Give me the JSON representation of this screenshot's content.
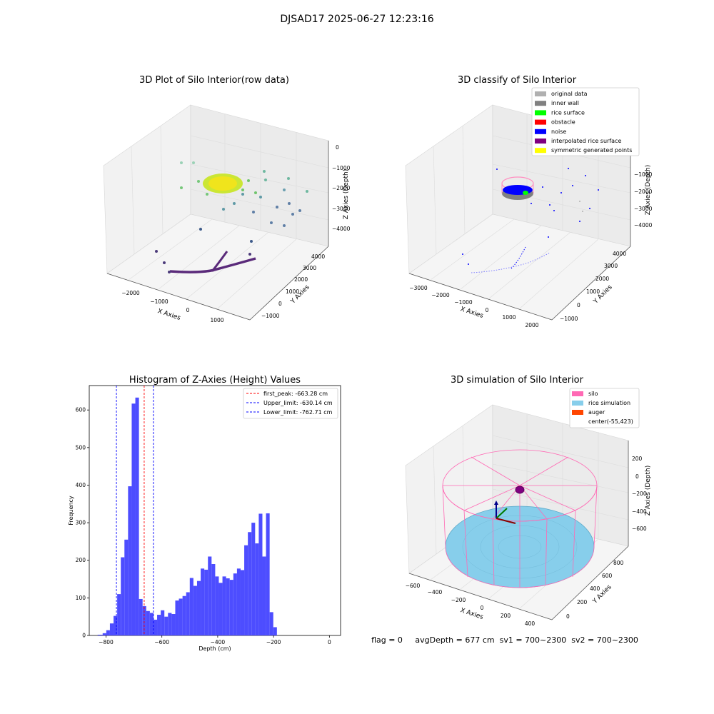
{
  "suptitle": "DJSAD17 2025-06-27 12:23:16",
  "panels": {
    "raw": {
      "title": "3D Plot of Silo Interior(row data)",
      "xlabel": "X Axies",
      "ylabel": "Y Axies",
      "zlabel": "Z Axies (Depth)",
      "xticks": [
        "−2000",
        "−1000",
        "0",
        "1000"
      ],
      "yticks": [
        "−1000",
        "0",
        "1000",
        "2000",
        "3000",
        "4000"
      ],
      "zticks": [
        "0",
        "−1000",
        "−2000",
        "−3000",
        "−4000"
      ]
    },
    "classify": {
      "title": "3D classify of Silo Interior",
      "xlabel": "X Axies",
      "ylabel": "Y Axies",
      "zlabel": "Z Axies (Depth)",
      "xticks": [
        "−3000",
        "−2000",
        "−1000",
        "0",
        "1000",
        "2000"
      ],
      "yticks": [
        "−1000",
        "0",
        "1000",
        "2000",
        "3000",
        "4000"
      ],
      "zticks": [
        "−1000",
        "−2000",
        "−3000",
        "−4000"
      ],
      "legend": [
        {
          "label": "original data",
          "color": "#b0b0b0"
        },
        {
          "label": "inner wall",
          "color": "#808080"
        },
        {
          "label": "rice surface",
          "color": "#00ff00"
        },
        {
          "label": "obstacle",
          "color": "#ff0000"
        },
        {
          "label": "noise",
          "color": "#0000ff"
        },
        {
          "label": "interpolated rice surface",
          "color": "#800080"
        },
        {
          "label": "symmetric generated points",
          "color": "#ffff00"
        }
      ]
    },
    "simulation": {
      "title": "3D simulation of Silo Interior",
      "xlabel": "X Axies",
      "ylabel": "Y Axies",
      "zlabel": "Z Axies (Depth)",
      "xticks": [
        "−600",
        "−400",
        "−200",
        "0",
        "200",
        "400"
      ],
      "yticks": [
        "0",
        "200",
        "400",
        "600",
        "800"
      ],
      "zticks": [
        "200",
        "0",
        "−200",
        "−400",
        "−600"
      ],
      "legend": [
        {
          "label": "silo",
          "color": "#ff69b4"
        },
        {
          "label": "rice simulation",
          "color": "#87ceeb"
        },
        {
          "label": "auger",
          "color": "#ff4500"
        },
        {
          "label": "center(-55,423)",
          "color": ""
        }
      ]
    }
  },
  "status_line": "flag = 0     avgDepth = 677 cm  sv1 = 700~2300  sv2 = 700~2300",
  "chart_data": {
    "type": "bar",
    "title": "Histogram of Z-Axies (Height) Values",
    "xlabel": "Depth (cm)",
    "ylabel": "Frequency",
    "xlim": [
      -860,
      40
    ],
    "ylim": [
      0,
      665
    ],
    "xticks": [
      -800,
      -600,
      -400,
      -200,
      0
    ],
    "yticks": [
      0,
      100,
      200,
      300,
      400,
      500,
      600
    ],
    "bar_color": "#4d4dff",
    "bins": [
      {
        "x0": -830,
        "x1": -812,
        "value": 2
      },
      {
        "x0": -812,
        "x1": -799,
        "value": 6
      },
      {
        "x0": -799,
        "x1": -786,
        "value": 14
      },
      {
        "x0": -786,
        "x1": -773,
        "value": 32
      },
      {
        "x0": -773,
        "x1": -760,
        "value": 52
      },
      {
        "x0": -760,
        "x1": -747,
        "value": 110
      },
      {
        "x0": -747,
        "x1": -734,
        "value": 208
      },
      {
        "x0": -734,
        "x1": -721,
        "value": 255
      },
      {
        "x0": -721,
        "x1": -708,
        "value": 397
      },
      {
        "x0": -708,
        "x1": -695,
        "value": 617
      },
      {
        "x0": -695,
        "x1": -682,
        "value": 633
      },
      {
        "x0": -682,
        "x1": -669,
        "value": 97
      },
      {
        "x0": -669,
        "x1": -656,
        "value": 78
      },
      {
        "x0": -656,
        "x1": -643,
        "value": 65
      },
      {
        "x0": -643,
        "x1": -630,
        "value": 60
      },
      {
        "x0": -630,
        "x1": -617,
        "value": 42
      },
      {
        "x0": -617,
        "x1": -604,
        "value": 55
      },
      {
        "x0": -604,
        "x1": -591,
        "value": 67
      },
      {
        "x0": -591,
        "x1": -578,
        "value": 50
      },
      {
        "x0": -578,
        "x1": -565,
        "value": 60
      },
      {
        "x0": -565,
        "x1": -552,
        "value": 57
      },
      {
        "x0": -552,
        "x1": -539,
        "value": 93
      },
      {
        "x0": -539,
        "x1": -526,
        "value": 98
      },
      {
        "x0": -526,
        "x1": -513,
        "value": 105
      },
      {
        "x0": -513,
        "x1": -500,
        "value": 115
      },
      {
        "x0": -500,
        "x1": -487,
        "value": 153
      },
      {
        "x0": -487,
        "x1": -474,
        "value": 132
      },
      {
        "x0": -474,
        "x1": -461,
        "value": 145
      },
      {
        "x0": -461,
        "x1": -448,
        "value": 178
      },
      {
        "x0": -448,
        "x1": -435,
        "value": 175
      },
      {
        "x0": -435,
        "x1": -422,
        "value": 210
      },
      {
        "x0": -422,
        "x1": -409,
        "value": 190
      },
      {
        "x0": -409,
        "x1": -396,
        "value": 157
      },
      {
        "x0": -396,
        "x1": -383,
        "value": 140
      },
      {
        "x0": -383,
        "x1": -370,
        "value": 157
      },
      {
        "x0": -370,
        "x1": -357,
        "value": 152
      },
      {
        "x0": -357,
        "x1": -344,
        "value": 148
      },
      {
        "x0": -344,
        "x1": -331,
        "value": 165
      },
      {
        "x0": -331,
        "x1": -318,
        "value": 178
      },
      {
        "x0": -318,
        "x1": -305,
        "value": 174
      },
      {
        "x0": -305,
        "x1": -292,
        "value": 240
      },
      {
        "x0": -292,
        "x1": -279,
        "value": 275
      },
      {
        "x0": -279,
        "x1": -266,
        "value": 300
      },
      {
        "x0": -266,
        "x1": -253,
        "value": 245
      },
      {
        "x0": -253,
        "x1": -240,
        "value": 324
      },
      {
        "x0": -240,
        "x1": -227,
        "value": 210
      },
      {
        "x0": -227,
        "x1": -214,
        "value": 325
      },
      {
        "x0": -214,
        "x1": -201,
        "value": 62
      },
      {
        "x0": -201,
        "x1": -188,
        "value": 22
      }
    ],
    "vlines": [
      {
        "label": "first_peak: -663.28 cm",
        "x": -663.28,
        "color": "#ff0000"
      },
      {
        "label": "Upper_limit: -630.14 cm",
        "x": -630.14,
        "color": "#0000ff"
      },
      {
        "label": "Lower_limit: -762.71 cm",
        "x": -762.71,
        "color": "#0000ff"
      }
    ],
    "legend_position": "top-right"
  }
}
